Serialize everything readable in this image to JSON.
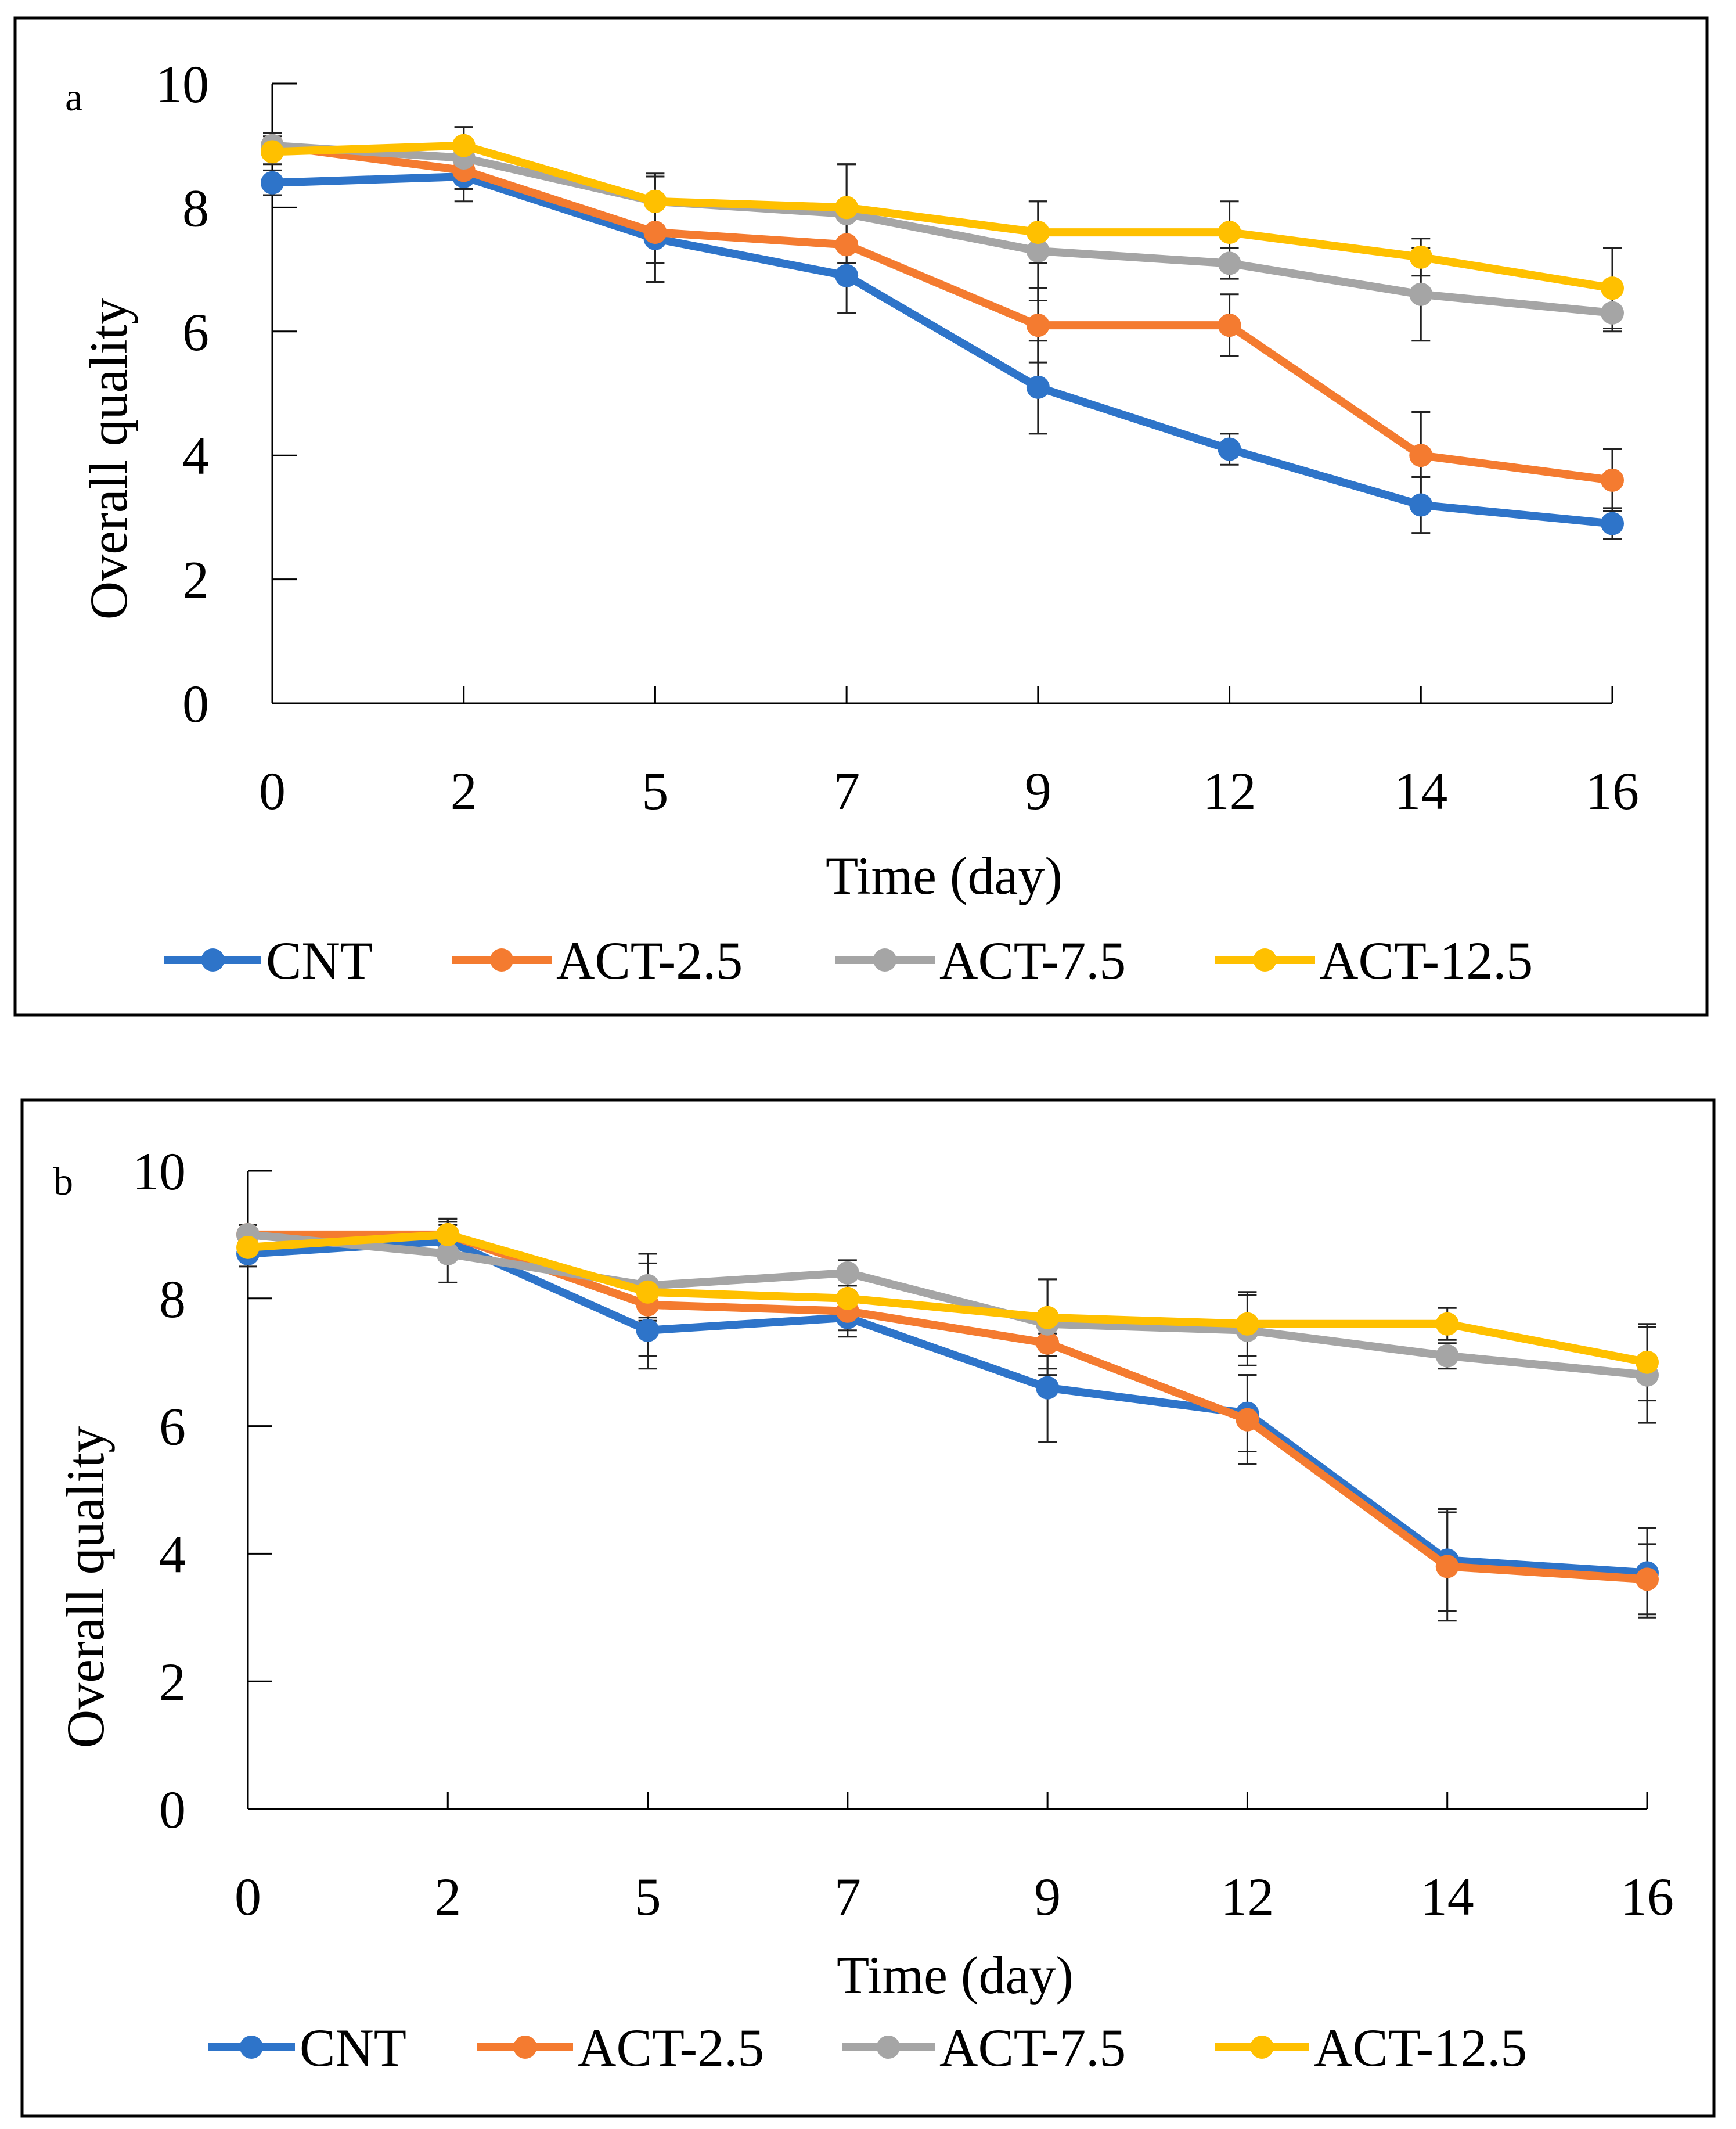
{
  "chart_data": [
    {
      "type": "line",
      "panel_label": "a",
      "xlabel": "Time (day)",
      "ylabel": "Overall quality",
      "ylim": [
        0,
        10
      ],
      "yticks": [
        0,
        2,
        4,
        6,
        8,
        10
      ],
      "categories": [
        "0",
        "2",
        "5",
        "7",
        "9",
        "12",
        "14",
        "16"
      ],
      "legend_position": "bottom",
      "series": [
        {
          "name": "CNT",
          "color": "#2E74C9",
          "values": [
            8.4,
            8.5,
            7.5,
            6.9,
            5.1,
            4.1,
            3.2,
            2.9
          ],
          "errors": [
            0.2,
            0.4,
            0.7,
            0.6,
            0.75,
            0.25,
            0.45,
            0.25
          ]
        },
        {
          "name": "ACT-2.5",
          "color": "#F47B30",
          "values": [
            9.0,
            8.6,
            7.6,
            7.4,
            6.1,
            6.1,
            4.0,
            3.6
          ],
          "errors": [
            0.2,
            0.3,
            0.5,
            0.4,
            0.6,
            0.5,
            0.7,
            0.5
          ]
        },
        {
          "name": "ACT-7.5",
          "color": "#A5A5A5",
          "values": [
            9.0,
            8.8,
            8.1,
            7.9,
            7.3,
            7.1,
            6.6,
            6.3
          ],
          "errors": [
            0.15,
            0.5,
            0.45,
            0.8,
            0.8,
            0.25,
            0.75,
            0.3
          ]
        },
        {
          "name": "ACT-12.5",
          "color": "#FFC000",
          "values": [
            8.9,
            9.0,
            8.1,
            8.0,
            7.6,
            7.6,
            7.2,
            6.7
          ],
          "errors": [
            0.2,
            0.3,
            0.4,
            0.7,
            0.5,
            0.5,
            0.3,
            0.65
          ]
        }
      ]
    },
    {
      "type": "line",
      "panel_label": "b",
      "xlabel": "Time (day)",
      "ylabel": "Overall quality",
      "ylim": [
        0,
        10
      ],
      "yticks": [
        0,
        2,
        4,
        6,
        8,
        10
      ],
      "categories": [
        "0",
        "2",
        "5",
        "7",
        "9",
        "12",
        "14",
        "16"
      ],
      "legend_position": "bottom",
      "series": [
        {
          "name": "CNT",
          "color": "#2E74C9",
          "values": [
            8.7,
            8.9,
            7.5,
            7.7,
            6.6,
            6.2,
            3.9,
            3.7
          ],
          "errors": [
            0.2,
            0.3,
            0.6,
            0.3,
            0.85,
            0.6,
            0.8,
            0.7
          ]
        },
        {
          "name": "ACT-2.5",
          "color": "#F47B30",
          "values": [
            9.0,
            9.0,
            7.9,
            7.8,
            7.3,
            6.1,
            3.8,
            3.6
          ],
          "errors": [
            0.15,
            0.25,
            0.8,
            0.3,
            0.5,
            0.7,
            0.85,
            0.55
          ]
        },
        {
          "name": "ACT-7.5",
          "color": "#A5A5A5",
          "values": [
            9.0,
            8.7,
            8.2,
            8.4,
            7.6,
            7.5,
            7.1,
            6.8
          ],
          "errors": [
            0.15,
            0.45,
            0.5,
            0.2,
            0.7,
            0.55,
            0.2,
            0.75
          ]
        },
        {
          "name": "ACT-12.5",
          "color": "#FFC000",
          "values": [
            8.8,
            9.0,
            8.1,
            8.0,
            7.7,
            7.6,
            7.6,
            7.0
          ],
          "errors": [
            0.15,
            0.25,
            0.45,
            0.3,
            0.6,
            0.5,
            0.25,
            0.6
          ]
        }
      ]
    }
  ]
}
